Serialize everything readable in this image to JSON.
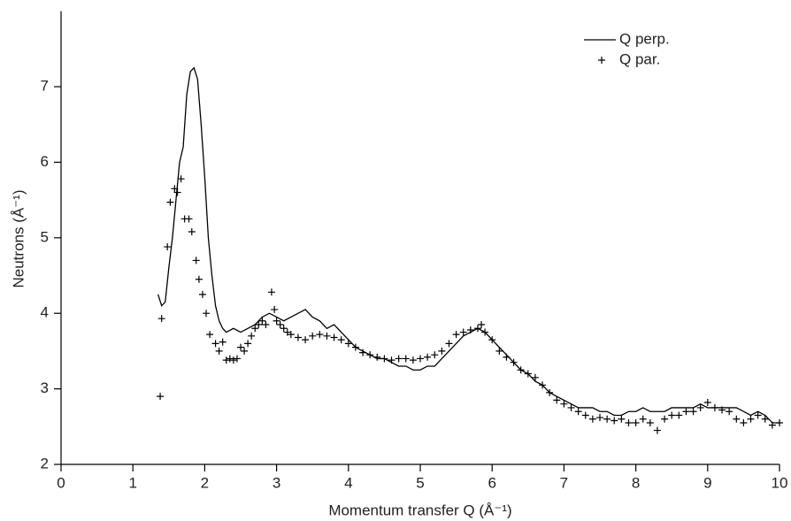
{
  "chart_data": {
    "type": "line",
    "x_label": "Momentum transfer Q (Å⁻¹)",
    "y_label": "Neutrons (Å⁻¹)",
    "xlim": [
      0,
      10
    ],
    "xticks": [
      0,
      1,
      2,
      3,
      4,
      5,
      6,
      7,
      8,
      9,
      10
    ],
    "ylim": [
      2,
      8
    ],
    "yticks": [
      2,
      3,
      4,
      5,
      6,
      7
    ],
    "legend": "upper right",
    "series": [
      {
        "name": "Q perp.",
        "type": "line",
        "color": "#000000",
        "x": [
          1.35,
          1.4,
          1.45,
          1.5,
          1.55,
          1.6,
          1.65,
          1.7,
          1.75,
          1.8,
          1.85,
          1.9,
          1.95,
          2.0,
          2.05,
          2.1,
          2.15,
          2.2,
          2.25,
          2.3,
          2.4,
          2.5,
          2.6,
          2.7,
          2.8,
          2.9,
          3.0,
          3.1,
          3.2,
          3.3,
          3.4,
          3.5,
          3.6,
          3.7,
          3.8,
          3.9,
          4.0,
          4.1,
          4.2,
          4.3,
          4.4,
          4.5,
          4.6,
          4.7,
          4.8,
          4.9,
          5.0,
          5.1,
          5.2,
          5.3,
          5.4,
          5.5,
          5.6,
          5.7,
          5.8,
          5.9,
          6.0,
          6.1,
          6.2,
          6.3,
          6.4,
          6.5,
          6.6,
          6.7,
          6.8,
          6.9,
          7.0,
          7.1,
          7.2,
          7.3,
          7.4,
          7.5,
          7.6,
          7.7,
          7.8,
          7.9,
          8.0,
          8.1,
          8.2,
          8.3,
          8.4,
          8.5,
          8.6,
          8.7,
          8.8,
          8.9,
          9.0,
          9.1,
          9.2,
          9.3,
          9.4,
          9.5,
          9.6,
          9.7,
          9.8,
          9.9,
          10.0
        ],
        "values": [
          4.25,
          4.1,
          4.15,
          4.6,
          5.0,
          5.5,
          6.0,
          6.2,
          6.9,
          7.2,
          7.25,
          7.1,
          6.5,
          5.8,
          5.0,
          4.5,
          4.1,
          3.9,
          3.8,
          3.75,
          3.8,
          3.75,
          3.8,
          3.85,
          3.95,
          4.0,
          3.95,
          3.9,
          3.95,
          4.0,
          4.05,
          3.95,
          3.9,
          3.8,
          3.85,
          3.75,
          3.65,
          3.55,
          3.5,
          3.45,
          3.4,
          3.4,
          3.35,
          3.3,
          3.3,
          3.25,
          3.25,
          3.3,
          3.3,
          3.4,
          3.5,
          3.6,
          3.7,
          3.75,
          3.8,
          3.75,
          3.65,
          3.55,
          3.45,
          3.35,
          3.25,
          3.2,
          3.1,
          3.05,
          2.95,
          2.9,
          2.85,
          2.8,
          2.75,
          2.75,
          2.75,
          2.7,
          2.7,
          2.65,
          2.65,
          2.7,
          2.7,
          2.75,
          2.7,
          2.7,
          2.7,
          2.75,
          2.75,
          2.75,
          2.75,
          2.8,
          2.75,
          2.75,
          2.75,
          2.75,
          2.75,
          2.7,
          2.65,
          2.7,
          2.65,
          2.55,
          2.55
        ]
      },
      {
        "name": "Q par.",
        "type": "scatter",
        "color": "#000000",
        "x": [
          1.38,
          1.4,
          1.48,
          1.52,
          1.58,
          1.62,
          1.67,
          1.72,
          1.78,
          1.82,
          1.88,
          1.92,
          1.97,
          2.02,
          2.07,
          2.15,
          2.2,
          2.25,
          2.3,
          2.35,
          2.4,
          2.45,
          2.5,
          2.55,
          2.6,
          2.65,
          2.7,
          2.75,
          2.8,
          2.85,
          2.93,
          2.97,
          3.0,
          3.05,
          3.1,
          3.15,
          3.2,
          3.3,
          3.4,
          3.5,
          3.6,
          3.7,
          3.8,
          3.9,
          4.0,
          4.1,
          4.2,
          4.3,
          4.4,
          4.5,
          4.6,
          4.7,
          4.8,
          4.9,
          5.0,
          5.1,
          5.2,
          5.3,
          5.4,
          5.5,
          5.6,
          5.7,
          5.8,
          5.85,
          5.9,
          6.0,
          6.1,
          6.2,
          6.3,
          6.4,
          6.5,
          6.6,
          6.7,
          6.8,
          6.9,
          7.0,
          7.1,
          7.2,
          7.3,
          7.4,
          7.5,
          7.6,
          7.7,
          7.8,
          7.9,
          8.0,
          8.1,
          8.2,
          8.3,
          8.4,
          8.5,
          8.6,
          8.7,
          8.8,
          8.9,
          9.0,
          9.1,
          9.2,
          9.3,
          9.4,
          9.5,
          9.6,
          9.7,
          9.8,
          9.9,
          10.0
        ],
        "values": [
          2.9,
          3.93,
          4.88,
          5.47,
          5.65,
          5.6,
          5.78,
          5.25,
          5.25,
          5.08,
          4.7,
          4.45,
          4.25,
          4.0,
          3.72,
          3.6,
          3.5,
          3.62,
          3.38,
          3.4,
          3.38,
          3.4,
          3.55,
          3.5,
          3.6,
          3.7,
          3.8,
          3.85,
          3.9,
          3.85,
          4.28,
          4.05,
          3.9,
          3.85,
          3.8,
          3.75,
          3.72,
          3.68,
          3.65,
          3.7,
          3.72,
          3.7,
          3.68,
          3.65,
          3.6,
          3.55,
          3.48,
          3.45,
          3.42,
          3.4,
          3.38,
          3.4,
          3.4,
          3.38,
          3.4,
          3.42,
          3.45,
          3.5,
          3.6,
          3.72,
          3.75,
          3.78,
          3.8,
          3.85,
          3.75,
          3.65,
          3.5,
          3.42,
          3.35,
          3.25,
          3.2,
          3.15,
          3.05,
          2.95,
          2.85,
          2.8,
          2.75,
          2.7,
          2.65,
          2.6,
          2.62,
          2.6,
          2.58,
          2.6,
          2.55,
          2.55,
          2.6,
          2.55,
          2.45,
          2.6,
          2.65,
          2.65,
          2.7,
          2.7,
          2.75,
          2.82,
          2.75,
          2.72,
          2.7,
          2.6,
          2.55,
          2.6,
          2.65,
          2.6,
          2.52,
          2.55
        ]
      }
    ]
  }
}
